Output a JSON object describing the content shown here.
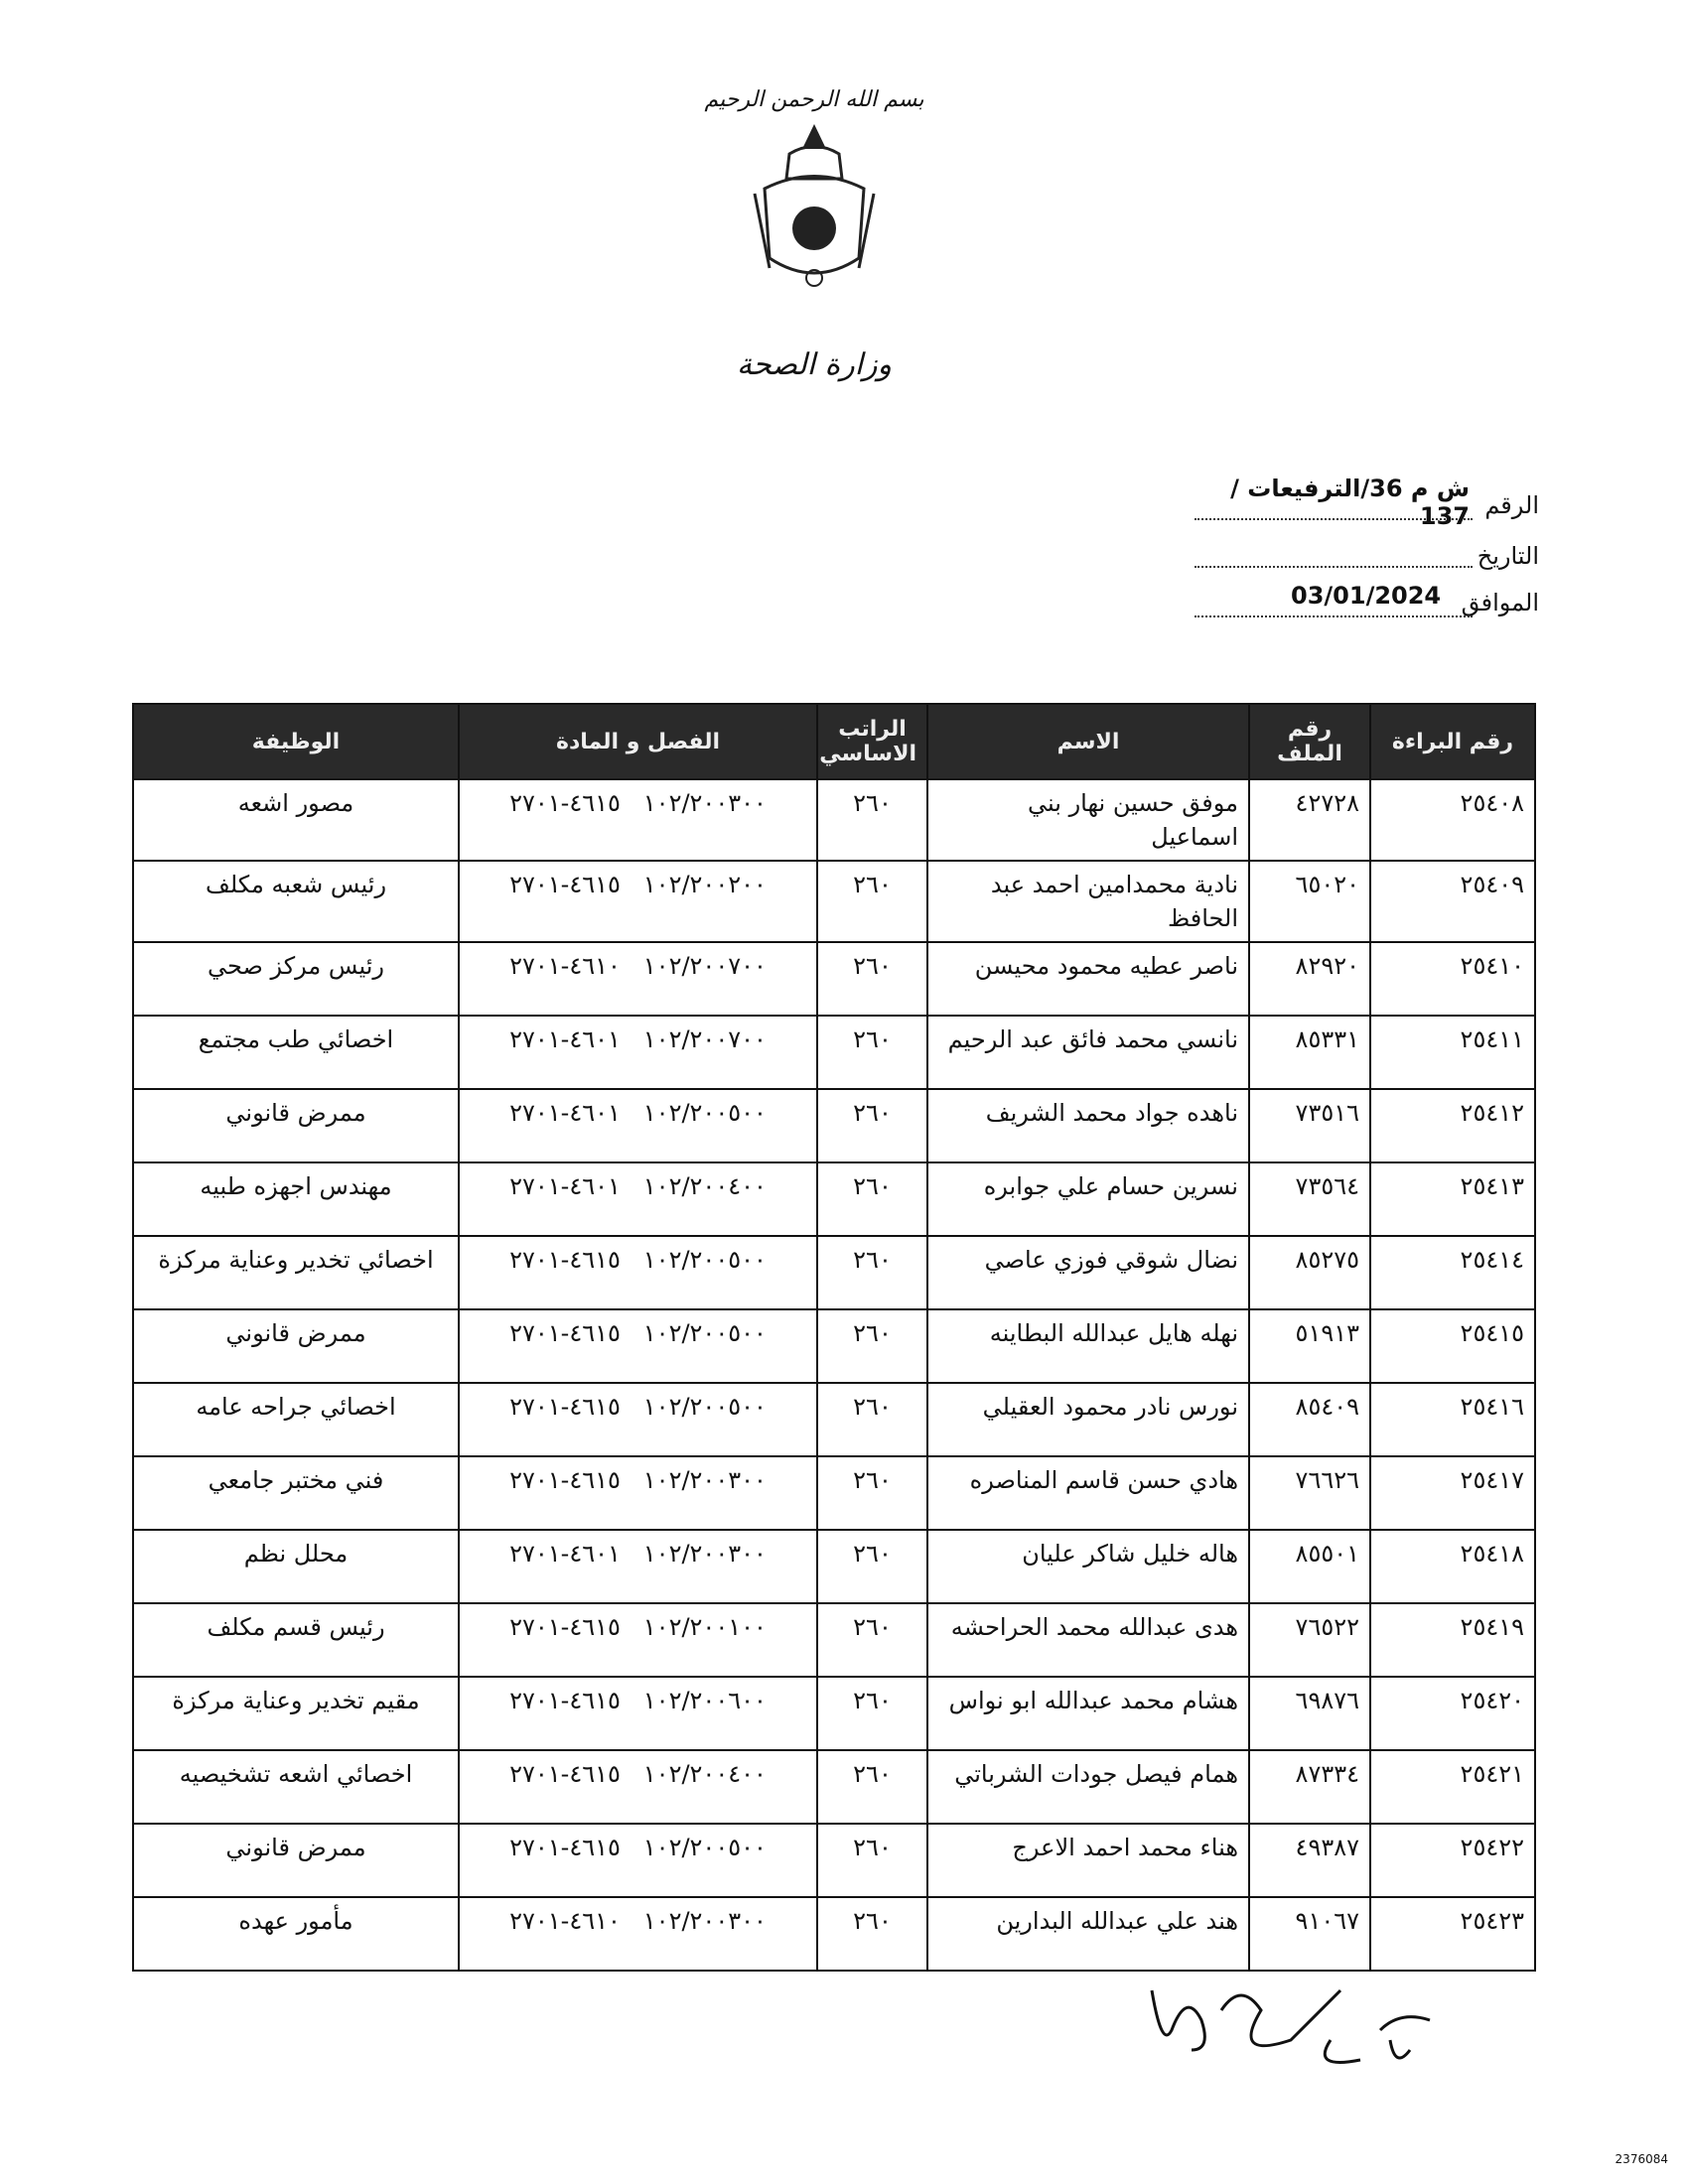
{
  "header": {
    "basmala": "بسم الله الرحمن الرحيم",
    "ministry": "وزارة الصحة"
  },
  "reference": {
    "number_label": "الرقم",
    "number": "ش م 36/الترفيعات / 137",
    "date_label": "التاريخ",
    "corresponding_label": "الموافق",
    "corresponding": "03/01/2024"
  },
  "table": {
    "headers": [
      "رقم البراءة",
      "رقم الملف",
      "الاسم",
      "الراتب الاساسي",
      "الفصل و المادة",
      "الوظيفة"
    ],
    "rows": [
      [
        "٢٥٤٠٨",
        "٤٢٧٢٨",
        "موفق حسين نهار بني اسماعيل",
        "٢٦٠",
        "١٠٢/٢٠٠٣٠٠   ٤٦١٥-٢٧٠١",
        "مصور اشعه"
      ],
      [
        "٢٥٤٠٩",
        "٦٥٠٢٠",
        "نادية محمدامين احمد عبد الحافظ",
        "٢٦٠",
        "١٠٢/٢٠٠٢٠٠   ٤٦١٥-٢٧٠١",
        "رئيس شعبه مكلف"
      ],
      [
        "٢٥٤١٠",
        "٨٢٩٢٠",
        "ناصر عطيه محمود محيسن",
        "٢٦٠",
        "١٠٢/٢٠٠٧٠٠   ٤٦١٠-٢٧٠١",
        "رئيس مركز صحي"
      ],
      [
        "٢٥٤١١",
        "٨٥٣٣١",
        "نانسي محمد فائق عبد الرحيم",
        "٢٦٠",
        "١٠٢/٢٠٠٧٠٠   ٤٦٠١-٢٧٠١",
        "اخصائي طب مجتمع"
      ],
      [
        "٢٥٤١٢",
        "٧٣٥١٦",
        "ناهده جواد محمد الشريف",
        "٢٦٠",
        "١٠٢/٢٠٠٥٠٠   ٤٦٠١-٢٧٠١",
        "ممرض قانوني"
      ],
      [
        "٢٥٤١٣",
        "٧٣٥٦٤",
        "نسرين حسام علي جوابره",
        "٢٦٠",
        "١٠٢/٢٠٠٤٠٠   ٤٦٠١-٢٧٠١",
        "مهندس اجهزه طبيه"
      ],
      [
        "٢٥٤١٤",
        "٨٥٢٧٥",
        "نضال شوقي فوزي عاصي",
        "٢٦٠",
        "١٠٢/٢٠٠٥٠٠   ٤٦١٥-٢٧٠١",
        "اخصائي تخدير وعناية مركزة"
      ],
      [
        "٢٥٤١٥",
        "٥١٩١٣",
        "نهله هايل عبدالله البطاينه",
        "٢٦٠",
        "١٠٢/٢٠٠٥٠٠   ٤٦١٥-٢٧٠١",
        "ممرض قانوني"
      ],
      [
        "٢٥٤١٦",
        "٨٥٤٠٩",
        "نورس نادر محمود العقيلي",
        "٢٦٠",
        "١٠٢/٢٠٠٥٠٠   ٤٦١٥-٢٧٠١",
        "اخصائي جراحه عامه"
      ],
      [
        "٢٥٤١٧",
        "٧٦٦٢٦",
        "هادي حسن قاسم المناصره",
        "٢٦٠",
        "١٠٢/٢٠٠٣٠٠   ٤٦١٥-٢٧٠١",
        "فني مختبر جامعي"
      ],
      [
        "٢٥٤١٨",
        "٨٥٥٠١",
        "هاله خليل شاكر عليان",
        "٢٦٠",
        "١٠٢/٢٠٠٣٠٠   ٤٦٠١-٢٧٠١",
        "محلل نظم"
      ],
      [
        "٢٥٤١٩",
        "٧٦٥٢٢",
        "هدى عبدالله محمد الحراحشه",
        "٢٦٠",
        "١٠٢/٢٠٠١٠٠   ٤٦١٥-٢٧٠١",
        "رئيس قسم مكلف"
      ],
      [
        "٢٥٤٢٠",
        "٦٩٨٧٦",
        "هشام محمد عبدالله ابو نواس",
        "٢٦٠",
        "١٠٢/٢٠٠٦٠٠   ٤٦١٥-٢٧٠١",
        "مقيم تخدير وعناية مركزة"
      ],
      [
        "٢٥٤٢١",
        "٨٧٣٣٤",
        "همام فيصل جودات الشرباتي",
        "٢٦٠",
        "١٠٢/٢٠٠٤٠٠   ٤٦١٥-٢٧٠١",
        "اخصائي اشعه تشخيصيه"
      ],
      [
        "٢٥٤٢٢",
        "٤٩٣٨٧",
        "هناء محمد احمد الاعرج",
        "٢٦٠",
        "١٠٢/٢٠٠٥٠٠   ٤٦١٥-٢٧٠١",
        "ممرض قانوني"
      ],
      [
        "٢٥٤٢٣",
        "٩١٠٦٧",
        "هند علي عبدالله البدارين",
        "٢٦٠",
        "١٠٢/٢٠٠٣٠٠   ٤٦١٠-٢٧٠١",
        "مأمور عهده"
      ]
    ]
  },
  "footer": {
    "code": "2376084"
  }
}
